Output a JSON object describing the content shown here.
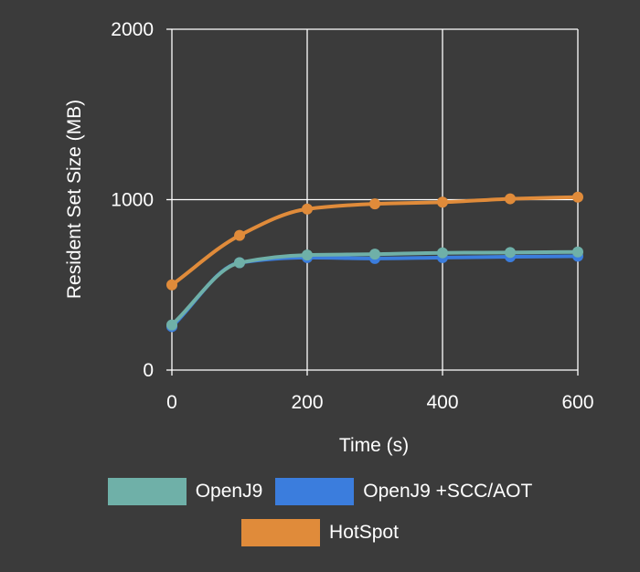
{
  "chart_data": {
    "type": "line",
    "title": "",
    "xlabel": "Time (s)",
    "ylabel": "Resident Set Size (MB)",
    "xlim": [
      0,
      600
    ],
    "ylim": [
      0,
      2000
    ],
    "xticks": [
      "0",
      "200",
      "400",
      "600"
    ],
    "yticks": [
      "0",
      "1000",
      "2000"
    ],
    "grid": true,
    "legend_position": "bottom",
    "x": [
      0,
      100,
      200,
      300,
      400,
      500,
      600
    ],
    "series": [
      {
        "name": "OpenJ9 +SCC/AOT",
        "color": "#3b7ddd",
        "values": [
          255,
          630,
          660,
          655,
          660,
          665,
          668
        ]
      },
      {
        "name": "OpenJ9",
        "color": "#6fb0a8",
        "values": [
          265,
          630,
          675,
          680,
          688,
          690,
          693
        ]
      },
      {
        "name": "HotSpot",
        "color": "#e08b3a",
        "values": [
          500,
          790,
          945,
          975,
          985,
          1005,
          1015
        ]
      }
    ]
  },
  "legend": {
    "items": [
      {
        "label": "OpenJ9",
        "color": "#6fb0a8"
      },
      {
        "label": "OpenJ9 +SCC/AOT",
        "color": "#3b7ddd"
      },
      {
        "label": "HotSpot",
        "color": "#e08b3a"
      }
    ]
  }
}
